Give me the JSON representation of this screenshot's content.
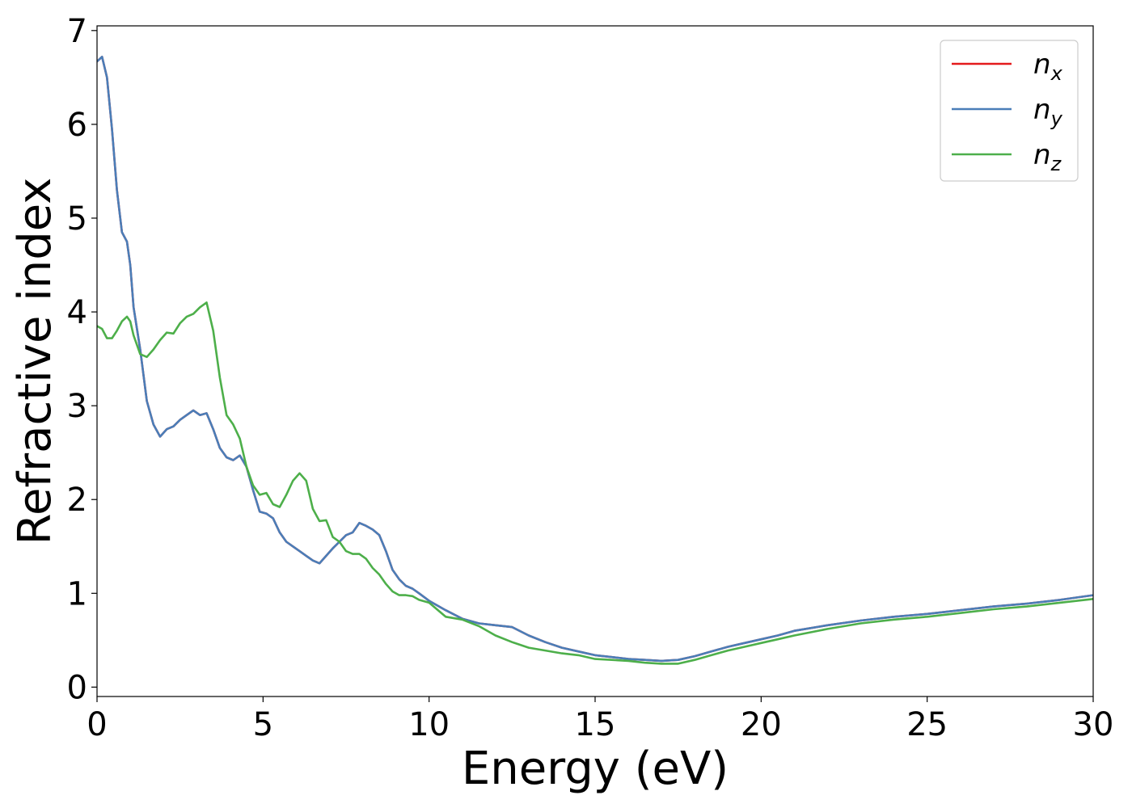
{
  "chart_data": {
    "type": "line",
    "title": "",
    "xlabel": "Energy (eV)",
    "ylabel": "Refractive index",
    "xlim": [
      0,
      30
    ],
    "ylim": [
      -0.1,
      7.05
    ],
    "xticks": [
      0,
      5,
      10,
      15,
      20,
      25,
      30
    ],
    "yticks": [
      0,
      1,
      2,
      3,
      4,
      5,
      6,
      7
    ],
    "grid": false,
    "legend_position": "top-right",
    "series": [
      {
        "name": "n_x",
        "label_base": "n",
        "label_sub": "x",
        "color": "#e41a1c",
        "x": [
          0,
          0.15,
          0.3,
          0.45,
          0.6,
          0.75,
          0.9,
          1.0,
          1.1,
          1.3,
          1.5,
          1.7,
          1.9,
          2.1,
          2.3,
          2.5,
          2.7,
          2.9,
          3.1,
          3.3,
          3.5,
          3.7,
          3.9,
          4.1,
          4.3,
          4.5,
          4.7,
          4.9,
          5.1,
          5.3,
          5.5,
          5.7,
          5.9,
          6.1,
          6.3,
          6.5,
          6.7,
          6.9,
          7.1,
          7.3,
          7.5,
          7.7,
          7.9,
          8.1,
          8.3,
          8.5,
          8.7,
          8.9,
          9.1,
          9.3,
          9.5,
          9.7,
          10.0,
          10.5,
          11.0,
          11.5,
          12.0,
          12.5,
          13.0,
          13.5,
          14.0,
          14.5,
          15.0,
          15.5,
          16.0,
          16.5,
          17.0,
          17.5,
          18.0,
          18.5,
          19.0,
          19.5,
          20.0,
          20.5,
          21.0,
          22.0,
          23.0,
          24.0,
          25.0,
          26.0,
          27.0,
          28.0,
          29.0,
          30.0
        ],
        "y": [
          6.67,
          6.72,
          6.5,
          5.95,
          5.3,
          4.85,
          4.75,
          4.5,
          4.05,
          3.6,
          3.05,
          2.8,
          2.67,
          2.75,
          2.78,
          2.85,
          2.9,
          2.95,
          2.9,
          2.92,
          2.75,
          2.55,
          2.45,
          2.42,
          2.47,
          2.35,
          2.1,
          1.87,
          1.85,
          1.8,
          1.65,
          1.55,
          1.5,
          1.45,
          1.4,
          1.35,
          1.32,
          1.4,
          1.48,
          1.55,
          1.62,
          1.65,
          1.75,
          1.72,
          1.68,
          1.62,
          1.45,
          1.25,
          1.15,
          1.08,
          1.05,
          1.0,
          0.92,
          0.82,
          0.73,
          0.68,
          0.66,
          0.64,
          0.55,
          0.48,
          0.42,
          0.38,
          0.34,
          0.32,
          0.3,
          0.29,
          0.28,
          0.29,
          0.33,
          0.38,
          0.43,
          0.47,
          0.51,
          0.55,
          0.6,
          0.66,
          0.71,
          0.75,
          0.78,
          0.82,
          0.86,
          0.89,
          0.93,
          0.98
        ]
      },
      {
        "name": "n_y",
        "label_base": "n",
        "label_sub": "y",
        "color": "#4a7eb8",
        "x": [
          0,
          0.15,
          0.3,
          0.45,
          0.6,
          0.75,
          0.9,
          1.0,
          1.1,
          1.3,
          1.5,
          1.7,
          1.9,
          2.1,
          2.3,
          2.5,
          2.7,
          2.9,
          3.1,
          3.3,
          3.5,
          3.7,
          3.9,
          4.1,
          4.3,
          4.5,
          4.7,
          4.9,
          5.1,
          5.3,
          5.5,
          5.7,
          5.9,
          6.1,
          6.3,
          6.5,
          6.7,
          6.9,
          7.1,
          7.3,
          7.5,
          7.7,
          7.9,
          8.1,
          8.3,
          8.5,
          8.7,
          8.9,
          9.1,
          9.3,
          9.5,
          9.7,
          10.0,
          10.5,
          11.0,
          11.5,
          12.0,
          12.5,
          13.0,
          13.5,
          14.0,
          14.5,
          15.0,
          15.5,
          16.0,
          16.5,
          17.0,
          17.5,
          18.0,
          18.5,
          19.0,
          19.5,
          20.0,
          20.5,
          21.0,
          22.0,
          23.0,
          24.0,
          25.0,
          26.0,
          27.0,
          28.0,
          29.0,
          30.0
        ],
        "y": [
          6.67,
          6.72,
          6.5,
          5.95,
          5.3,
          4.85,
          4.75,
          4.5,
          4.05,
          3.6,
          3.05,
          2.8,
          2.67,
          2.75,
          2.78,
          2.85,
          2.9,
          2.95,
          2.9,
          2.92,
          2.75,
          2.55,
          2.45,
          2.42,
          2.47,
          2.35,
          2.1,
          1.87,
          1.85,
          1.8,
          1.65,
          1.55,
          1.5,
          1.45,
          1.4,
          1.35,
          1.32,
          1.4,
          1.48,
          1.55,
          1.62,
          1.65,
          1.75,
          1.72,
          1.68,
          1.62,
          1.45,
          1.25,
          1.15,
          1.08,
          1.05,
          1.0,
          0.92,
          0.82,
          0.73,
          0.68,
          0.66,
          0.64,
          0.55,
          0.48,
          0.42,
          0.38,
          0.34,
          0.32,
          0.3,
          0.29,
          0.28,
          0.29,
          0.33,
          0.38,
          0.43,
          0.47,
          0.51,
          0.55,
          0.6,
          0.66,
          0.71,
          0.75,
          0.78,
          0.82,
          0.86,
          0.89,
          0.93,
          0.98
        ]
      },
      {
        "name": "n_z",
        "label_base": "n",
        "label_sub": "z",
        "color": "#4daf4a",
        "x": [
          0,
          0.15,
          0.3,
          0.45,
          0.6,
          0.75,
          0.9,
          1.0,
          1.1,
          1.3,
          1.5,
          1.7,
          1.9,
          2.1,
          2.3,
          2.5,
          2.7,
          2.9,
          3.1,
          3.3,
          3.5,
          3.7,
          3.9,
          4.1,
          4.3,
          4.5,
          4.7,
          4.9,
          5.1,
          5.3,
          5.5,
          5.7,
          5.9,
          6.1,
          6.3,
          6.5,
          6.7,
          6.9,
          7.1,
          7.3,
          7.5,
          7.7,
          7.9,
          8.1,
          8.3,
          8.5,
          8.7,
          8.9,
          9.1,
          9.3,
          9.5,
          9.7,
          10.0,
          10.5,
          11.0,
          11.5,
          12.0,
          12.5,
          13.0,
          13.5,
          14.0,
          14.5,
          15.0,
          15.5,
          16.0,
          16.5,
          17.0,
          17.5,
          18.0,
          18.5,
          19.0,
          19.5,
          20.0,
          20.5,
          21.0,
          22.0,
          23.0,
          24.0,
          25.0,
          26.0,
          27.0,
          28.0,
          29.0,
          30.0
        ],
        "y": [
          3.85,
          3.82,
          3.72,
          3.72,
          3.8,
          3.9,
          3.95,
          3.9,
          3.75,
          3.55,
          3.52,
          3.6,
          3.7,
          3.78,
          3.77,
          3.88,
          3.95,
          3.98,
          4.05,
          4.1,
          3.8,
          3.3,
          2.9,
          2.8,
          2.65,
          2.35,
          2.15,
          2.05,
          2.07,
          1.95,
          1.92,
          2.05,
          2.2,
          2.28,
          2.2,
          1.9,
          1.77,
          1.78,
          1.6,
          1.55,
          1.45,
          1.42,
          1.42,
          1.37,
          1.27,
          1.2,
          1.1,
          1.02,
          0.98,
          0.98,
          0.97,
          0.93,
          0.9,
          0.75,
          0.72,
          0.65,
          0.55,
          0.48,
          0.42,
          0.39,
          0.36,
          0.34,
          0.3,
          0.29,
          0.28,
          0.26,
          0.25,
          0.25,
          0.29,
          0.34,
          0.39,
          0.43,
          0.47,
          0.51,
          0.55,
          0.62,
          0.68,
          0.72,
          0.75,
          0.79,
          0.83,
          0.86,
          0.9,
          0.94
        ]
      }
    ]
  }
}
